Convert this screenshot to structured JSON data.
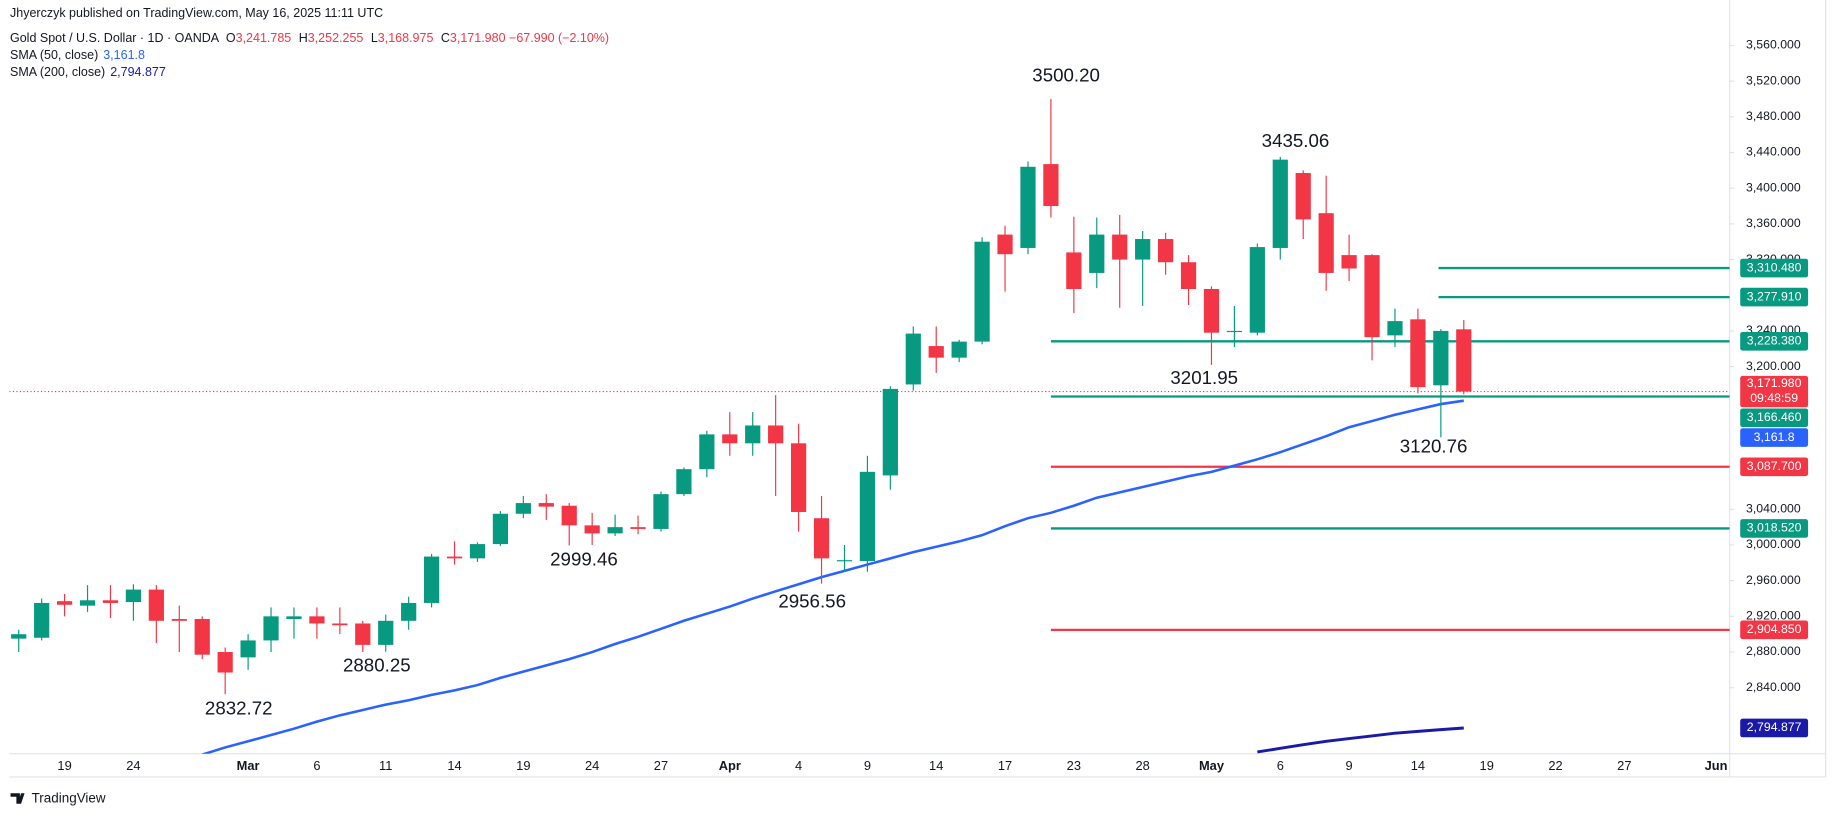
{
  "chart_data": {
    "type": "candlestick",
    "header": "Jhyerczyk published on TradingView.com, May 16, 2025 11:11 UTC",
    "symbol": "Gold Spot / U.S. Dollar · 1D · OANDA",
    "ohlc_legend": [
      {
        "key": "O",
        "value": "3,241.785"
      },
      {
        "key": "H",
        "value": "3,252.255"
      },
      {
        "key": "L",
        "value": "3,168.975"
      },
      {
        "key": "C",
        "value": "3,171.980"
      }
    ],
    "change": "−67.990 (−2.10%)",
    "categories": [
      null,
      null,
      "19",
      null,
      null,
      "24",
      null,
      null,
      null,
      null,
      "Mar",
      null,
      null,
      "6",
      null,
      null,
      "11",
      null,
      null,
      "14",
      null,
      null,
      "19",
      null,
      null,
      "24",
      null,
      null,
      "27",
      null,
      null,
      "Apr",
      null,
      null,
      "4",
      null,
      null,
      "9",
      null,
      null,
      "14",
      null,
      null,
      "17",
      null,
      null,
      "23",
      null,
      null,
      "28",
      null,
      null,
      "May",
      null,
      null,
      "6",
      null,
      null,
      "9",
      null,
      null,
      "14",
      null,
      null,
      "19",
      null,
      null,
      "22",
      null,
      null,
      "27",
      null,
      null,
      null,
      "Jun"
    ],
    "open": [
      2895,
      2896,
      2937,
      2932,
      2938,
      2936,
      2950,
      2917,
      2917,
      2880,
      2874,
      2893,
      2917,
      2920,
      2912,
      2912,
      2888,
      2915,
      2935,
      2987,
      2985,
      3001,
      3035,
      3047,
      3044,
      3022,
      3013,
      3020,
      3018,
      3057,
      3085,
      3124,
      3114,
      3134,
      3114,
      3030,
      2982,
      2982,
      3078,
      3180,
      3223,
      3210,
      3228,
      3348,
      3333,
      3427,
      3328,
      3305,
      3348,
      3320,
      3343,
      3317,
      3287,
      3240,
      3238,
      3333,
      3417,
      3372,
      3325,
      3325,
      3235,
      3253,
      3179,
      3241.785,
      null,
      null,
      null,
      null,
      null,
      null,
      null,
      null,
      null,
      null,
      null
    ],
    "high": [
      2905,
      2940,
      2945,
      2955,
      2955,
      2956,
      2955,
      2932,
      2920,
      2885,
      2900,
      2930,
      2930,
      2930,
      2930,
      2915,
      2922,
      2942,
      2990,
      3004,
      3003,
      3038,
      3055,
      3057,
      3047,
      3036,
      3034,
      3033,
      3060,
      3087,
      3128,
      3149,
      3149,
      3168,
      3136,
      3055,
      3000,
      3100,
      3178,
      3245,
      3245,
      3230,
      3345,
      3358,
      3430,
      3500.2,
      3368,
      3367,
      3370,
      3352,
      3350,
      3325,
      3290,
      3268,
      3338,
      3435.06,
      3420,
      3414,
      3348,
      3326,
      3265,
      3265,
      3242,
      3252.255,
      null,
      null,
      null,
      null,
      null,
      null,
      null,
      null,
      null,
      null,
      null
    ],
    "low": [
      2880,
      2893,
      2920,
      2925,
      2918,
      2915,
      2890,
      2880,
      2872,
      2832.72,
      2860,
      2880,
      2895,
      2895,
      2900,
      2880,
      2880.25,
      2905,
      2930,
      2978,
      2981,
      2999,
      3030,
      3028,
      2999.46,
      3000,
      3010,
      3012,
      3015,
      3055,
      3076,
      3100,
      3100,
      3055,
      3015,
      2956.56,
      2970,
      2970,
      3062,
      3173,
      3193,
      3205,
      3225,
      3284,
      3326,
      3367,
      3260,
      3288,
      3266,
      3268,
      3303,
      3269,
      3201.95,
      3222,
      3235,
      3320,
      3343,
      3285,
      3296,
      3207,
      3222,
      3170,
      3120.76,
      3168.975,
      null,
      null,
      null,
      null,
      null,
      null,
      null,
      null,
      null,
      null,
      null
    ],
    "close": [
      2900,
      2935,
      2933,
      2938,
      2935,
      2950,
      2915,
      2915,
      2877,
      2857,
      2893,
      2920,
      2920,
      2912,
      2910,
      2888,
      2915,
      2935,
      2987,
      2985,
      3001,
      3035,
      3047,
      3043,
      3022,
      3013,
      3020,
      3018,
      3057,
      3085,
      3124,
      3114,
      3134,
      3114,
      3037,
      2985,
      2983,
      3082,
      3175,
      3237,
      3210,
      3228,
      3340,
      3326,
      3424,
      3380,
      3287,
      3348,
      3320,
      3343,
      3317,
      3287,
      3238,
      3240,
      3334,
      3432,
      3365,
      3305,
      3310,
      3233,
      3251,
      3177,
      3240,
      3171.98,
      null,
      null,
      null,
      null,
      null,
      null,
      null,
      null,
      null,
      null,
      null
    ],
    "up_color": "#089981",
    "down_color": "#f23645",
    "series": [
      {
        "name": "SMA (50, close)",
        "color": "#2962ff",
        "last_label": "3,161.8",
        "values": [
          null,
          null,
          null,
          null,
          null,
          null,
          null,
          null,
          2765,
          2773,
          2780,
          2787,
          2794,
          2802,
          2809,
          2815,
          2821,
          2826,
          2832,
          2837,
          2843,
          2851,
          2858,
          2865,
          2872,
          2880,
          2889,
          2897,
          2906,
          2915,
          2923,
          2931,
          2940,
          2948,
          2956,
          2964,
          2971,
          2978,
          2985,
          2992,
          2998,
          3004,
          3011,
          3021,
          3030,
          3036,
          3044,
          3053,
          3059,
          3065,
          3071,
          3077,
          3082,
          3089,
          3096,
          3104,
          3113,
          3122,
          3132,
          3139,
          3146,
          3152,
          3158,
          3161.8,
          null,
          null,
          null,
          null,
          null,
          null,
          null,
          null,
          null,
          null,
          null
        ]
      },
      {
        "name": "SMA (200, close)",
        "color": "#1a1aa6",
        "last_label": "2,794.877",
        "values": [
          null,
          null,
          null,
          null,
          null,
          null,
          null,
          null,
          null,
          null,
          null,
          null,
          null,
          null,
          null,
          null,
          null,
          null,
          null,
          null,
          null,
          null,
          null,
          null,
          null,
          null,
          null,
          null,
          null,
          null,
          null,
          null,
          null,
          null,
          null,
          null,
          null,
          null,
          null,
          null,
          null,
          null,
          null,
          null,
          null,
          null,
          null,
          null,
          null,
          null,
          null,
          null,
          null,
          null,
          2768,
          2772,
          2776,
          2780,
          2783,
          2786,
          2789,
          2791,
          2793,
          2794.877,
          null,
          null,
          null,
          null,
          null,
          null,
          null,
          null,
          null,
          null,
          null
        ]
      }
    ],
    "levels": [
      {
        "value": 3310.48,
        "label": "3,310.480",
        "color": "#089981"
      },
      {
        "value": 3277.91,
        "label": "3,277.910",
        "color": "#089981"
      },
      {
        "value": 3228.38,
        "label": "3,228.380",
        "color": "#089981"
      },
      {
        "value": 3166.46,
        "label": "3,166.460",
        "color": "#089981"
      },
      {
        "value": 3087.7,
        "label": "3,087.700",
        "color": "#f23645"
      },
      {
        "value": 3018.52,
        "label": "3,018.520",
        "color": "#089981"
      },
      {
        "value": 2904.85,
        "label": "2,904.850",
        "color": "#f23645"
      }
    ],
    "last_price": {
      "label": "3,171.980",
      "countdown": "09:48:59"
    },
    "annotations": [
      "3500.20",
      "3435.06",
      "3201.95",
      "3120.76",
      "2999.46",
      "2956.56",
      "2880.25",
      "2832.72"
    ],
    "ylim": [
      2766,
      3611
    ],
    "yticks": [
      {
        "value": 3560,
        "label": "3,560.000"
      },
      {
        "value": 3520,
        "label": "3,520.000"
      },
      {
        "value": 3480,
        "label": "3,480.000"
      },
      {
        "value": 3440,
        "label": "3,440.000"
      },
      {
        "value": 3400,
        "label": "3,400.000"
      },
      {
        "value": 3360,
        "label": "3,360.000"
      },
      {
        "value": 3320,
        "label": "3,320.000"
      },
      {
        "value": 3240,
        "label": "3,240.000"
      },
      {
        "value": 3200,
        "label": "3,200.000"
      },
      {
        "value": 3040,
        "label": "3,040.000"
      },
      {
        "value": 3000,
        "label": "3,000.000"
      },
      {
        "value": 2960,
        "label": "2,960.000"
      },
      {
        "value": 2920,
        "label": "2,920.000"
      },
      {
        "value": 2880,
        "label": "2,880.000"
      },
      {
        "value": 2840,
        "label": "2,840.000"
      }
    ],
    "logo": "TradingView"
  }
}
